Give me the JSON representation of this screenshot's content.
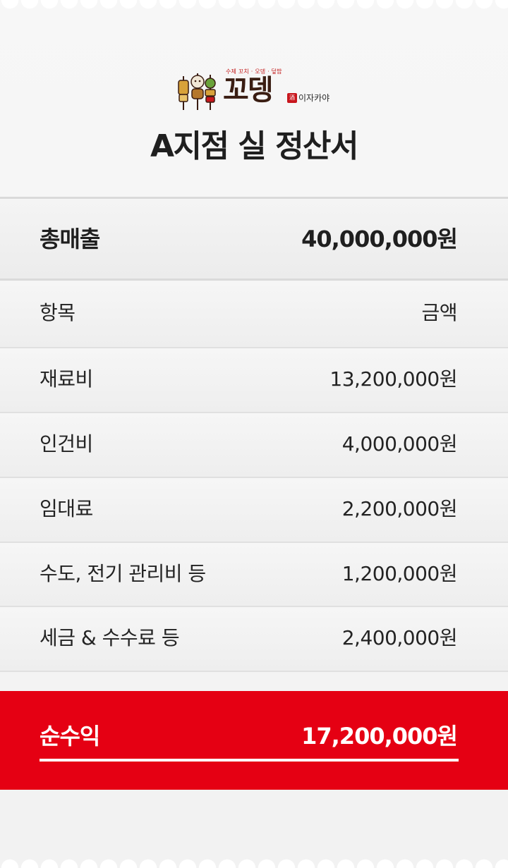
{
  "header": {
    "logo": {
      "tagline": "수제 꼬치 · 오뎅 · 덮밥",
      "brand": "꼬뎅",
      "seal": "酒",
      "sub": "이자카야"
    },
    "title": "A지점 실 정산서"
  },
  "total_revenue": {
    "label": "총매출",
    "value": "40,000,000원"
  },
  "table": {
    "header": {
      "label": "항목",
      "value": "금액"
    },
    "items": [
      {
        "label": "재료비",
        "value": "13,200,000원"
      },
      {
        "label": "인건비",
        "value": "4,000,000원"
      },
      {
        "label": "임대료",
        "value": "2,200,000원"
      },
      {
        "label": "수도, 전기 관리비 등",
        "value": "1,200,000원"
      },
      {
        "label": "세금 & 수수료 등",
        "value": "2,400,000원"
      }
    ]
  },
  "net_profit": {
    "label": "순수익",
    "value": "17,200,000원"
  },
  "colors": {
    "accent": "#e50013",
    "background": "#f2f2f2",
    "text": "#1f1f1f",
    "brand": "#3a1d12"
  },
  "icons": {
    "logo_mascot": "skewer-characters-icon"
  }
}
